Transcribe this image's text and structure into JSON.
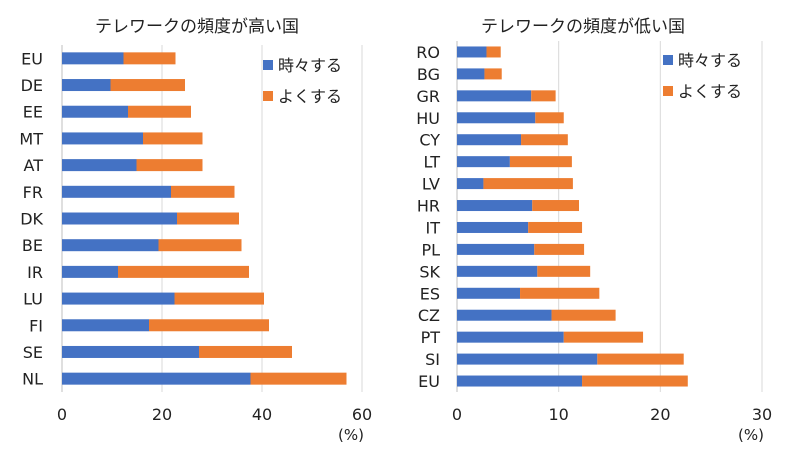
{
  "figure": {
    "colors": {
      "series_1": "#4472c4",
      "series_2": "#ed7d31"
    }
  },
  "chart_data": [
    {
      "type": "bar",
      "orientation": "horizontal",
      "stacked": true,
      "title": "テレワークの頻度が高い国",
      "categories": [
        "EU",
        "DE",
        "EE",
        "MT",
        "AT",
        "FR",
        "DK",
        "BE",
        "IR",
        "LU",
        "FI",
        "SE",
        "NL"
      ],
      "series": [
        {
          "name": "時々する",
          "color": "#4472c4",
          "values": [
            12.3,
            9.7,
            13.2,
            16.2,
            14.9,
            21.8,
            23.0,
            19.3,
            11.2,
            22.5,
            17.4,
            27.4,
            37.7
          ]
        },
        {
          "name": "よくする",
          "color": "#ed7d31",
          "values": [
            10.4,
            14.9,
            12.6,
            11.9,
            13.2,
            12.7,
            12.4,
            16.6,
            26.2,
            17.9,
            24.0,
            18.6,
            19.2
          ]
        }
      ],
      "xlim": [
        0,
        60
      ],
      "xticks": [
        0,
        20,
        40,
        60
      ],
      "xunit": "(%)",
      "grid": true,
      "legend": "top-right"
    },
    {
      "type": "bar",
      "orientation": "horizontal",
      "stacked": true,
      "title": "テレワークの頻度が低い国",
      "categories": [
        "RO",
        "BG",
        "GR",
        "HU",
        "CY",
        "LT",
        "LV",
        "HR",
        "IT",
        "PL",
        "SK",
        "ES",
        "CZ",
        "PT",
        "SI",
        "EU"
      ],
      "series": [
        {
          "name": "時々する",
          "color": "#4472c4",
          "values": [
            2.9,
            2.7,
            7.3,
            7.7,
            6.3,
            5.2,
            2.6,
            7.4,
            7.0,
            7.6,
            7.9,
            6.2,
            9.3,
            10.5,
            13.8,
            12.3
          ]
        },
        {
          "name": "よくする",
          "color": "#ed7d31",
          "values": [
            1.4,
            1.7,
            2.4,
            2.8,
            4.6,
            6.1,
            8.8,
            4.6,
            5.3,
            4.9,
            5.2,
            7.8,
            6.3,
            7.8,
            8.5,
            10.4
          ]
        }
      ],
      "xlim": [
        0,
        30
      ],
      "xticks": [
        0,
        10,
        20,
        30
      ],
      "xunit": "(%)",
      "grid": true,
      "legend": "top-right"
    }
  ]
}
